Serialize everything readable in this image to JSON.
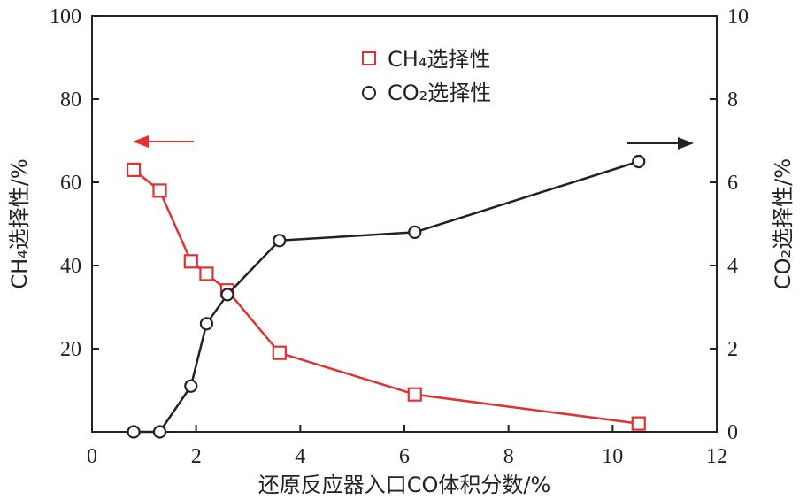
{
  "chart_data": {
    "type": "line",
    "xlabel": "还原反应器入口CO体积分数/%",
    "ylabel_left": "CH₄选择性/%",
    "ylabel_right": "CO₂选择性/%",
    "xlim": [
      0,
      12
    ],
    "ylim_left": [
      0,
      100
    ],
    "ylim_right": [
      0,
      10
    ],
    "x_ticks": [
      "0",
      "2",
      "4",
      "6",
      "8",
      "10",
      "12"
    ],
    "y_left_ticks": [
      "20",
      "40",
      "60",
      "80",
      "100"
    ],
    "y_right_ticks": [
      "0",
      "2",
      "4",
      "6",
      "8",
      "10"
    ],
    "legend_position": "top-center",
    "series": [
      {
        "name": "CH₄选择性",
        "axis": "left",
        "marker": "square",
        "color": "#e03232",
        "x": [
          0.8,
          1.3,
          1.9,
          2.2,
          2.6,
          3.6,
          6.2,
          10.5
        ],
        "y": [
          63,
          58,
          41,
          38,
          34,
          19,
          9,
          2
        ]
      },
      {
        "name": "CO₂选择性",
        "axis": "right",
        "marker": "circle",
        "color": "#222222",
        "x": [
          0.8,
          1.3,
          1.9,
          2.2,
          2.6,
          3.6,
          6.2,
          10.5
        ],
        "y": [
          0.0,
          0.0,
          1.1,
          2.6,
          3.3,
          4.6,
          4.8,
          6.5
        ]
      }
    ]
  }
}
